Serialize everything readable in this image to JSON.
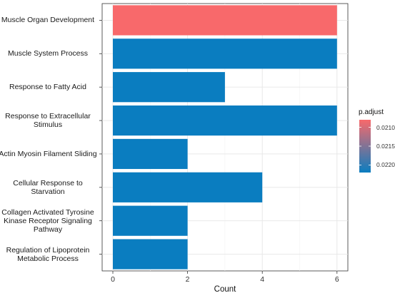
{
  "chart_data": {
    "type": "bar",
    "orientation": "horizontal",
    "categories": [
      "Muscle Organ Development",
      "Muscle System Process",
      "Response to Fatty Acid",
      "Response to Extracellular Stimulus",
      "Actin Myosin Filament Sliding",
      "Cellular Response to Starvation",
      "Collagen Activated Tyrosine Kinase Receptor Signaling Pathway",
      "Regulation of Lipoprotein Metabolic Process"
    ],
    "category_lines": [
      [
        "Muscle Organ Development"
      ],
      [
        "Muscle System Process"
      ],
      [
        "Response to Fatty Acid"
      ],
      [
        "Response to Extracellular",
        "Stimulus"
      ],
      [
        "Actin Myosin Filament Sliding"
      ],
      [
        "Cellular Response to",
        "Starvation"
      ],
      [
        "Collagen Activated Tyrosine",
        "Kinase Receptor Signaling",
        "Pathway"
      ],
      [
        "Regulation of Lipoprotein",
        "Metabolic Process"
      ]
    ],
    "values": [
      6,
      6,
      3,
      6,
      2,
      4,
      2,
      2
    ],
    "p_adjust": [
      0.0208,
      0.0222,
      0.0222,
      0.0222,
      0.0222,
      0.0222,
      0.0222,
      0.0222
    ],
    "xlabel": "Count",
    "ylabel": "",
    "xlim": [
      0,
      6.25
    ],
    "xticks": [
      0,
      2,
      4,
      6
    ],
    "grid": true,
    "legend": {
      "title": "p.adjust",
      "ticks": [
        "0.0210",
        "0.0215",
        "0.0220"
      ],
      "tick_values": [
        0.021,
        0.0215,
        0.022
      ],
      "range": [
        0.0208,
        0.0222
      ],
      "color_low": "#f8696b",
      "color_high": "#0a7dc0",
      "placement": "right"
    }
  }
}
